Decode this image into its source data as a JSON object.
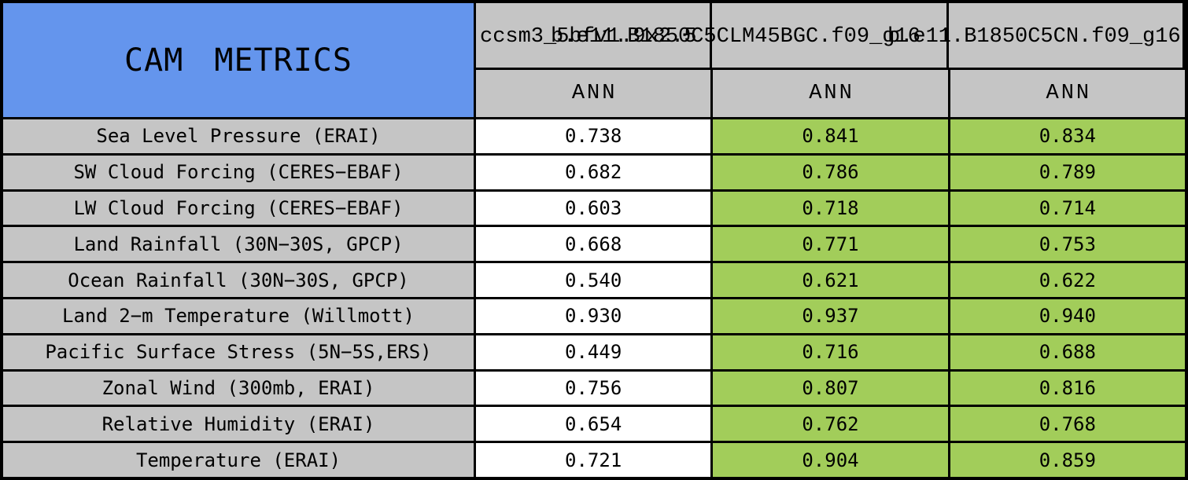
{
  "colors": {
    "header-blue": "#6495ED",
    "cell-green": "#A2CD5A",
    "cell-gray": "#C5C5C5",
    "cell-white": "#FFFFFF",
    "border-black": "#000000"
  },
  "header": {
    "title": "CAM METRICS",
    "models": [
      "ccsm3_5bfv1.9x2.5",
      "b.e11.B1850C5CLM45BGC.f09_g16",
      "b.e11.B1850C5CN.f09_g16"
    ],
    "seasons": [
      "ANN",
      "ANN",
      "ANN"
    ]
  },
  "rows": [
    {
      "label": "Sea Level Pressure (ERAI)",
      "values": [
        "0.738",
        "0.841",
        "0.834"
      ]
    },
    {
      "label": "SW Cloud Forcing (CERES−EBAF)",
      "values": [
        "0.682",
        "0.786",
        "0.789"
      ]
    },
    {
      "label": "LW Cloud Forcing (CERES−EBAF)",
      "values": [
        "0.603",
        "0.718",
        "0.714"
      ]
    },
    {
      "label": "Land Rainfall (30N−30S, GPCP)",
      "values": [
        "0.668",
        "0.771",
        "0.753"
      ]
    },
    {
      "label": "Ocean Rainfall (30N−30S, GPCP)",
      "values": [
        "0.540",
        "0.621",
        "0.622"
      ]
    },
    {
      "label": "Land 2−m Temperature (Willmott)",
      "values": [
        "0.930",
        "0.937",
        "0.940"
      ]
    },
    {
      "label": "Pacific Surface Stress (5N−5S,ERS)",
      "values": [
        "0.449",
        "0.716",
        "0.688"
      ]
    },
    {
      "label": "Zonal Wind (300mb, ERAI)",
      "values": [
        "0.756",
        "0.807",
        "0.816"
      ]
    },
    {
      "label": "Relative Humidity (ERAI)",
      "values": [
        "0.654",
        "0.762",
        "0.768"
      ]
    },
    {
      "label": "Temperature (ERAI)",
      "values": [
        "0.721",
        "0.904",
        "0.859"
      ]
    }
  ],
  "chart_data": {
    "type": "table",
    "title": "CAM METRICS",
    "column_models": [
      "ccsm3_5bfv1.9x2.5",
      "b.e11.B1850C5CLM45BGC.f09_g16",
      "b.e11.B1850C5CN.f09_g16"
    ],
    "column_seasons": [
      "ANN",
      "ANN",
      "ANN"
    ],
    "row_metrics": [
      "Sea Level Pressure (ERAI)",
      "SW Cloud Forcing (CERES−EBAF)",
      "LW Cloud Forcing (CERES−EBAF)",
      "Land Rainfall (30N−30S, GPCP)",
      "Ocean Rainfall (30N−30S, GPCP)",
      "Land 2−m Temperature (Willmott)",
      "Pacific Surface Stress (5N−5S,ERS)",
      "Zonal Wind (300mb, ERAI)",
      "Relative Humidity (ERAI)",
      "Temperature (ERAI)"
    ],
    "values": [
      [
        0.738,
        0.841,
        0.834
      ],
      [
        0.682,
        0.786,
        0.789
      ],
      [
        0.603,
        0.718,
        0.714
      ],
      [
        0.668,
        0.771,
        0.753
      ],
      [
        0.54,
        0.621,
        0.622
      ],
      [
        0.93,
        0.937,
        0.94
      ],
      [
        0.449,
        0.716,
        0.688
      ],
      [
        0.756,
        0.807,
        0.816
      ],
      [
        0.654,
        0.762,
        0.768
      ],
      [
        0.721,
        0.904,
        0.859
      ]
    ],
    "layout_hints": {
      "first_value_column_background": "white",
      "second_third_value_column_background": "green",
      "label_column_background": "gray",
      "title_cell_background": "cornflower blue",
      "header_text_overlaps_columns": true
    }
  }
}
